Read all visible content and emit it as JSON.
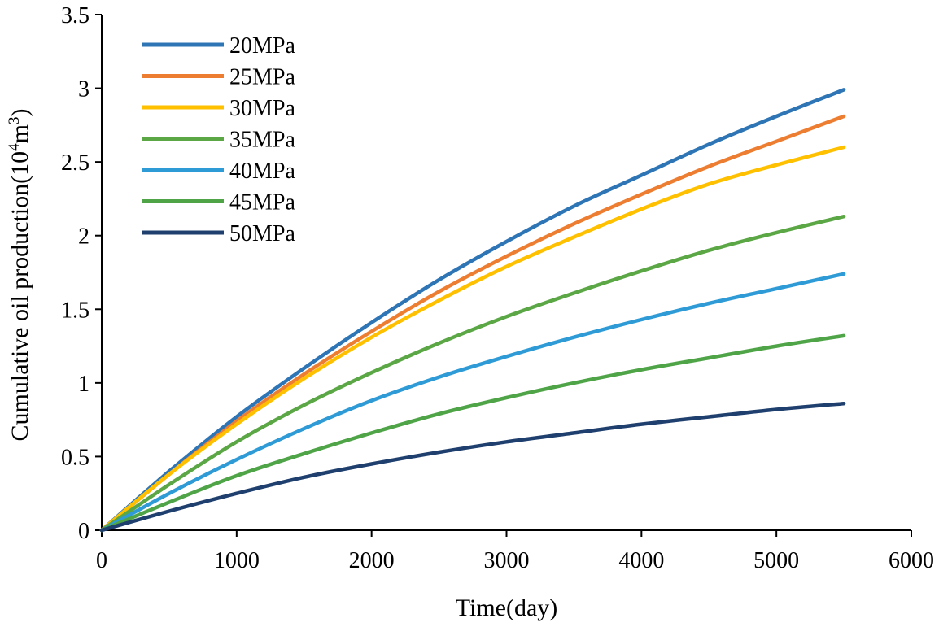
{
  "chart_data": {
    "type": "line",
    "title": "",
    "xlabel": "Time(day)",
    "ylabel": {
      "prefix": "Cumulative oil production(10",
      "sup1": "4",
      "mid": "m",
      "sup2": "3",
      "suffix": ")"
    },
    "xlim": [
      0,
      6000
    ],
    "ylim": [
      0,
      3.5
    ],
    "xticks": [
      "0",
      "1000",
      "2000",
      "3000",
      "4000",
      "5000",
      "6000"
    ],
    "yticks": [
      "0",
      "0.5",
      "1",
      "1.5",
      "2",
      "2.5",
      "3",
      "3.5"
    ],
    "grid": false,
    "legend_position": "top-left",
    "x": [
      0,
      500,
      1000,
      1500,
      2000,
      2500,
      3000,
      3500,
      4000,
      4500,
      5000,
      5500
    ],
    "series": [
      {
        "name": "20MPa",
        "color": "#2e75b6",
        "values": [
          0,
          0.4,
          0.77,
          1.1,
          1.41,
          1.7,
          1.96,
          2.2,
          2.41,
          2.62,
          2.81,
          2.99
        ]
      },
      {
        "name": "25MPa",
        "color": "#ed7d31",
        "values": [
          0,
          0.38,
          0.74,
          1.06,
          1.35,
          1.62,
          1.86,
          2.08,
          2.28,
          2.47,
          2.64,
          2.81
        ]
      },
      {
        "name": "30MPa",
        "color": "#ffc000",
        "values": [
          0,
          0.38,
          0.72,
          1.03,
          1.31,
          1.56,
          1.79,
          1.99,
          2.18,
          2.35,
          2.48,
          2.6
        ]
      },
      {
        "name": "35MPa",
        "color": "#5ba745",
        "values": [
          0,
          0.31,
          0.6,
          0.85,
          1.07,
          1.27,
          1.45,
          1.61,
          1.76,
          1.9,
          2.02,
          2.13
        ]
      },
      {
        "name": "40MPa",
        "color": "#2e9bd6",
        "values": [
          0,
          0.25,
          0.48,
          0.69,
          0.88,
          1.04,
          1.18,
          1.31,
          1.43,
          1.54,
          1.64,
          1.74
        ]
      },
      {
        "name": "45MPa",
        "color": "#4ea447",
        "values": [
          0,
          0.19,
          0.37,
          0.52,
          0.66,
          0.79,
          0.9,
          1.0,
          1.09,
          1.17,
          1.25,
          1.32
        ]
      },
      {
        "name": "50MPa",
        "color": "#1f3f6e",
        "values": [
          0,
          0.13,
          0.25,
          0.36,
          0.45,
          0.53,
          0.6,
          0.66,
          0.72,
          0.77,
          0.82,
          0.86
        ]
      }
    ]
  }
}
